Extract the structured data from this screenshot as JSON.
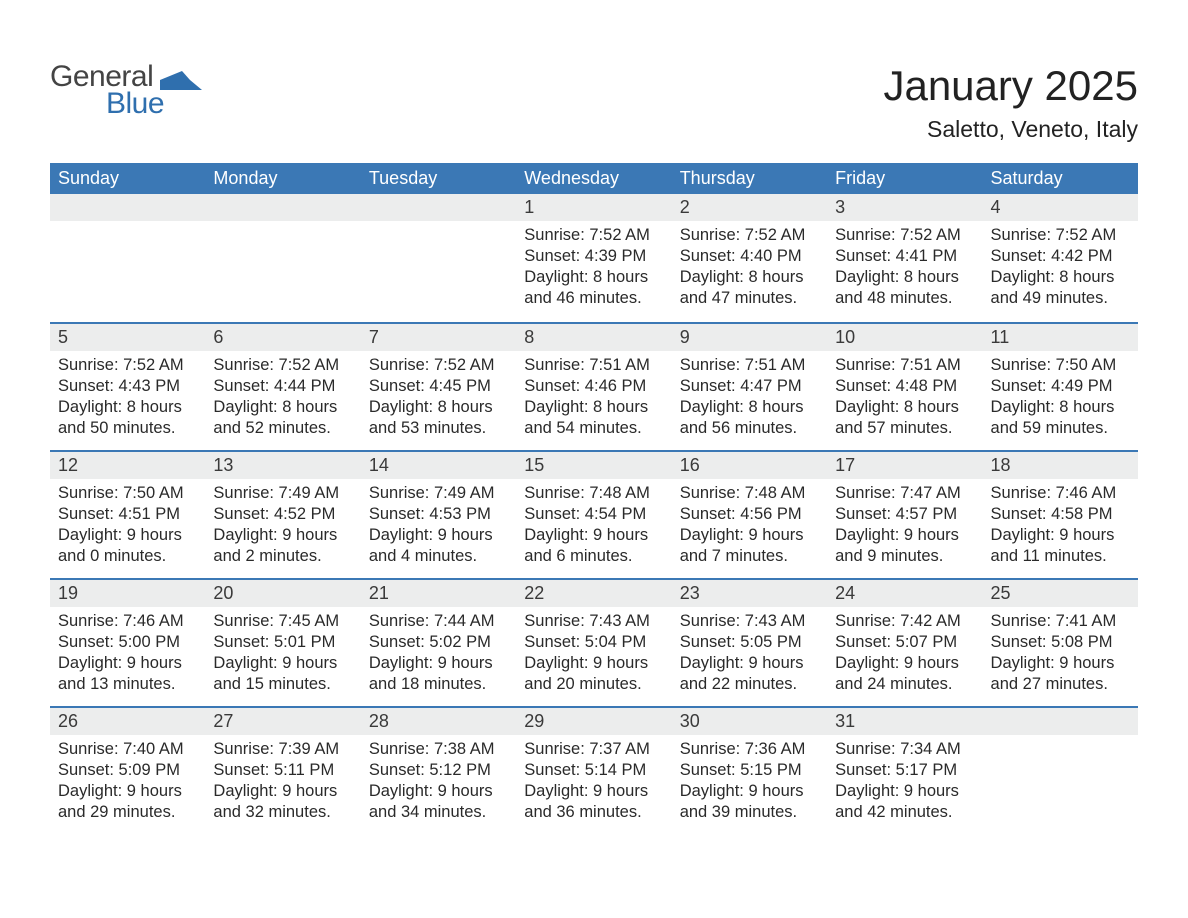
{
  "logo": {
    "text1": "General",
    "text2": "Blue",
    "icon_color": "#2f6fae"
  },
  "title": "January 2025",
  "location": "Saletto, Veneto, Italy",
  "colors": {
    "header_bg": "#3b78b5",
    "header_text": "#ffffff",
    "daynum_bg": "#eceded",
    "row_border": "#3b78b5",
    "body_text": "#2a2a2a",
    "title_text": "#222222",
    "logo_gray": "#444444",
    "logo_blue": "#2f6fae",
    "page_bg": "#ffffff"
  },
  "fonts": {
    "title_size_pt": 32,
    "location_size_pt": 17,
    "header_size_pt": 14,
    "daynum_size_pt": 14,
    "body_size_pt": 12
  },
  "weekdays": [
    "Sunday",
    "Monday",
    "Tuesday",
    "Wednesday",
    "Thursday",
    "Friday",
    "Saturday"
  ],
  "weeks": [
    [
      null,
      null,
      null,
      {
        "n": "1",
        "sunrise": "7:52 AM",
        "sunset": "4:39 PM",
        "dl1": "8 hours",
        "dl2": "46 minutes."
      },
      {
        "n": "2",
        "sunrise": "7:52 AM",
        "sunset": "4:40 PM",
        "dl1": "8 hours",
        "dl2": "47 minutes."
      },
      {
        "n": "3",
        "sunrise": "7:52 AM",
        "sunset": "4:41 PM",
        "dl1": "8 hours",
        "dl2": "48 minutes."
      },
      {
        "n": "4",
        "sunrise": "7:52 AM",
        "sunset": "4:42 PM",
        "dl1": "8 hours",
        "dl2": "49 minutes."
      }
    ],
    [
      {
        "n": "5",
        "sunrise": "7:52 AM",
        "sunset": "4:43 PM",
        "dl1": "8 hours",
        "dl2": "50 minutes."
      },
      {
        "n": "6",
        "sunrise": "7:52 AM",
        "sunset": "4:44 PM",
        "dl1": "8 hours",
        "dl2": "52 minutes."
      },
      {
        "n": "7",
        "sunrise": "7:52 AM",
        "sunset": "4:45 PM",
        "dl1": "8 hours",
        "dl2": "53 minutes."
      },
      {
        "n": "8",
        "sunrise": "7:51 AM",
        "sunset": "4:46 PM",
        "dl1": "8 hours",
        "dl2": "54 minutes."
      },
      {
        "n": "9",
        "sunrise": "7:51 AM",
        "sunset": "4:47 PM",
        "dl1": "8 hours",
        "dl2": "56 minutes."
      },
      {
        "n": "10",
        "sunrise": "7:51 AM",
        "sunset": "4:48 PM",
        "dl1": "8 hours",
        "dl2": "57 minutes."
      },
      {
        "n": "11",
        "sunrise": "7:50 AM",
        "sunset": "4:49 PM",
        "dl1": "8 hours",
        "dl2": "59 minutes."
      }
    ],
    [
      {
        "n": "12",
        "sunrise": "7:50 AM",
        "sunset": "4:51 PM",
        "dl1": "9 hours",
        "dl2": "0 minutes."
      },
      {
        "n": "13",
        "sunrise": "7:49 AM",
        "sunset": "4:52 PM",
        "dl1": "9 hours",
        "dl2": "2 minutes."
      },
      {
        "n": "14",
        "sunrise": "7:49 AM",
        "sunset": "4:53 PM",
        "dl1": "9 hours",
        "dl2": "4 minutes."
      },
      {
        "n": "15",
        "sunrise": "7:48 AM",
        "sunset": "4:54 PM",
        "dl1": "9 hours",
        "dl2": "6 minutes."
      },
      {
        "n": "16",
        "sunrise": "7:48 AM",
        "sunset": "4:56 PM",
        "dl1": "9 hours",
        "dl2": "7 minutes."
      },
      {
        "n": "17",
        "sunrise": "7:47 AM",
        "sunset": "4:57 PM",
        "dl1": "9 hours",
        "dl2": "9 minutes."
      },
      {
        "n": "18",
        "sunrise": "7:46 AM",
        "sunset": "4:58 PM",
        "dl1": "9 hours",
        "dl2": "11 minutes."
      }
    ],
    [
      {
        "n": "19",
        "sunrise": "7:46 AM",
        "sunset": "5:00 PM",
        "dl1": "9 hours",
        "dl2": "13 minutes."
      },
      {
        "n": "20",
        "sunrise": "7:45 AM",
        "sunset": "5:01 PM",
        "dl1": "9 hours",
        "dl2": "15 minutes."
      },
      {
        "n": "21",
        "sunrise": "7:44 AM",
        "sunset": "5:02 PM",
        "dl1": "9 hours",
        "dl2": "18 minutes."
      },
      {
        "n": "22",
        "sunrise": "7:43 AM",
        "sunset": "5:04 PM",
        "dl1": "9 hours",
        "dl2": "20 minutes."
      },
      {
        "n": "23",
        "sunrise": "7:43 AM",
        "sunset": "5:05 PM",
        "dl1": "9 hours",
        "dl2": "22 minutes."
      },
      {
        "n": "24",
        "sunrise": "7:42 AM",
        "sunset": "5:07 PM",
        "dl1": "9 hours",
        "dl2": "24 minutes."
      },
      {
        "n": "25",
        "sunrise": "7:41 AM",
        "sunset": "5:08 PM",
        "dl1": "9 hours",
        "dl2": "27 minutes."
      }
    ],
    [
      {
        "n": "26",
        "sunrise": "7:40 AM",
        "sunset": "5:09 PM",
        "dl1": "9 hours",
        "dl2": "29 minutes."
      },
      {
        "n": "27",
        "sunrise": "7:39 AM",
        "sunset": "5:11 PM",
        "dl1": "9 hours",
        "dl2": "32 minutes."
      },
      {
        "n": "28",
        "sunrise": "7:38 AM",
        "sunset": "5:12 PM",
        "dl1": "9 hours",
        "dl2": "34 minutes."
      },
      {
        "n": "29",
        "sunrise": "7:37 AM",
        "sunset": "5:14 PM",
        "dl1": "9 hours",
        "dl2": "36 minutes."
      },
      {
        "n": "30",
        "sunrise": "7:36 AM",
        "sunset": "5:15 PM",
        "dl1": "9 hours",
        "dl2": "39 minutes."
      },
      {
        "n": "31",
        "sunrise": "7:34 AM",
        "sunset": "5:17 PM",
        "dl1": "9 hours",
        "dl2": "42 minutes."
      },
      null
    ]
  ],
  "labels": {
    "sunrise": "Sunrise:",
    "sunset": "Sunset:",
    "daylight": "Daylight:",
    "and": "and"
  }
}
